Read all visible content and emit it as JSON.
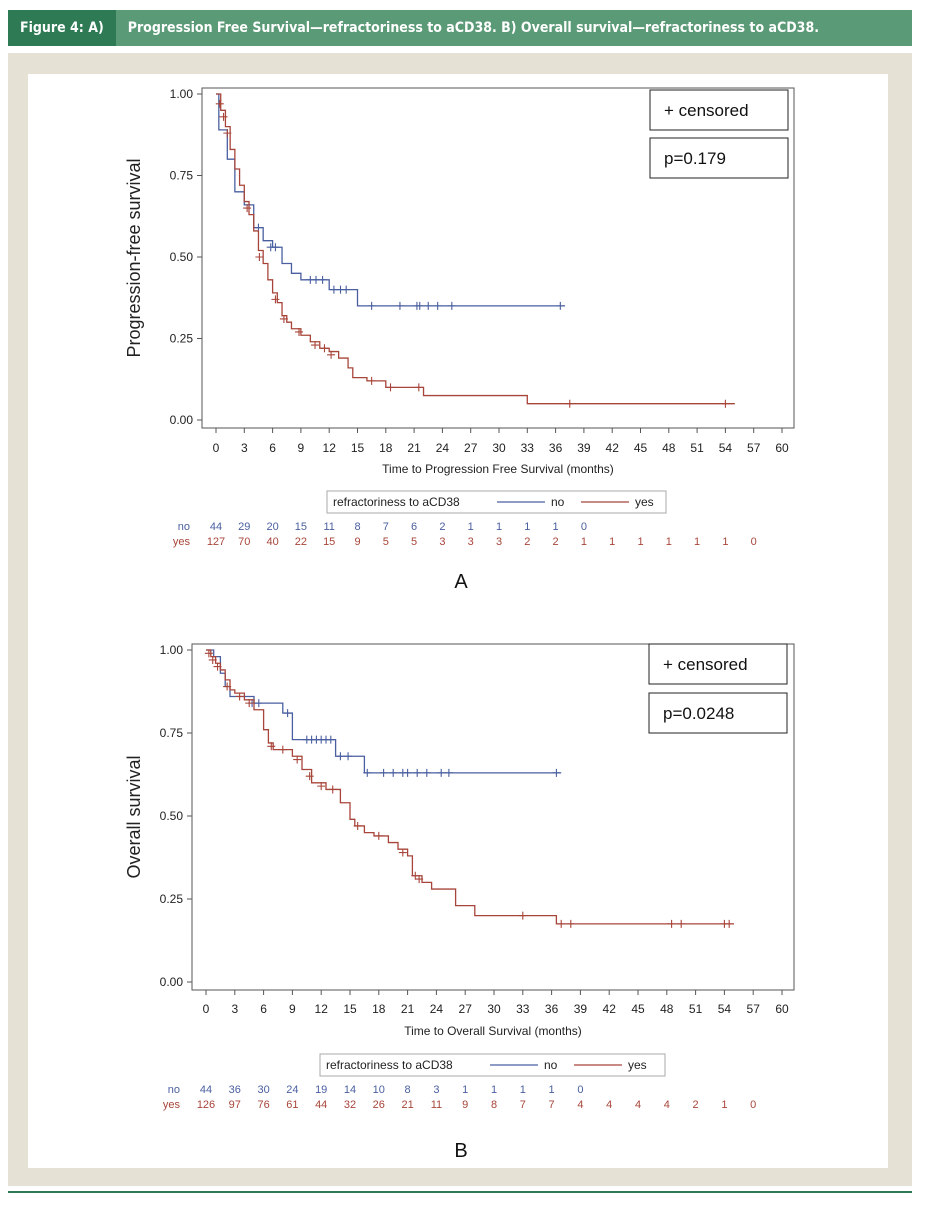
{
  "figure": {
    "label": "Figure 4: A)",
    "title": "Progression Free Survival—refractoriness to aCD38. B) Overall survival—refractoriness to aCD38."
  },
  "colors": {
    "no": "#4a5fa0",
    "yes": "#a8453a",
    "header_bg": "#5b9a76",
    "header_label_bg": "#2e7a55"
  },
  "chart_data": [
    {
      "type": "line",
      "panel_label": "A",
      "xlabel": "Time to Progression Free Survival (months)",
      "ylabel": "Progression-free survival",
      "xlim": [
        0,
        60
      ],
      "ylim": [
        0,
        1
      ],
      "xticks": [
        0,
        3,
        6,
        9,
        12,
        15,
        18,
        21,
        24,
        27,
        30,
        33,
        36,
        39,
        42,
        45,
        48,
        51,
        54,
        57,
        60
      ],
      "yticks": [
        "0.00",
        "0.25",
        "0.50",
        "0.75",
        "1.00"
      ],
      "censored_label": "+ censored",
      "p_value": "p=0.179",
      "legend_title": "refractoriness to aCD38",
      "series": [
        {
          "name": "no",
          "color": "#4a5fa0",
          "steps": [
            [
              0,
              1.0
            ],
            [
              0.3,
              0.89
            ],
            [
              1.2,
              0.8
            ],
            [
              2,
              0.7
            ],
            [
              3,
              0.66
            ],
            [
              4,
              0.59
            ],
            [
              5,
              0.55
            ],
            [
              6,
              0.53
            ],
            [
              7,
              0.48
            ],
            [
              8,
              0.45
            ],
            [
              9,
              0.43
            ],
            [
              12,
              0.4
            ],
            [
              15,
              0.35
            ],
            [
              37,
              0.35
            ]
          ],
          "censored": [
            [
              4.5,
              0.59
            ],
            [
              5.8,
              0.53
            ],
            [
              6.3,
              0.53
            ],
            [
              10,
              0.43
            ],
            [
              10.6,
              0.43
            ],
            [
              11.3,
              0.43
            ],
            [
              12.5,
              0.4
            ],
            [
              13.2,
              0.4
            ],
            [
              13.8,
              0.4
            ],
            [
              16.5,
              0.35
            ],
            [
              19.5,
              0.35
            ],
            [
              21.3,
              0.35
            ],
            [
              21.6,
              0.35
            ],
            [
              22.5,
              0.35
            ],
            [
              23.5,
              0.35
            ],
            [
              25,
              0.35
            ],
            [
              36.5,
              0.35
            ]
          ]
        },
        {
          "name": "yes",
          "color": "#a8453a",
          "steps": [
            [
              0,
              1.0
            ],
            [
              0.5,
              0.95
            ],
            [
              1,
              0.9
            ],
            [
              1.5,
              0.83
            ],
            [
              2,
              0.77
            ],
            [
              2.5,
              0.72
            ],
            [
              3,
              0.67
            ],
            [
              3.5,
              0.63
            ],
            [
              4,
              0.58
            ],
            [
              4.5,
              0.52
            ],
            [
              5,
              0.48
            ],
            [
              5.5,
              0.43
            ],
            [
              6,
              0.39
            ],
            [
              6.5,
              0.36
            ],
            [
              7,
              0.32
            ],
            [
              7.5,
              0.3
            ],
            [
              8,
              0.28
            ],
            [
              9,
              0.26
            ],
            [
              10,
              0.24
            ],
            [
              11,
              0.22
            ],
            [
              12,
              0.21
            ],
            [
              13,
              0.19
            ],
            [
              14,
              0.16
            ],
            [
              14.5,
              0.13
            ],
            [
              16,
              0.12
            ],
            [
              18,
              0.1
            ],
            [
              22,
              0.075
            ],
            [
              33,
              0.05
            ],
            [
              55,
              0.05
            ]
          ],
          "censored": [
            [
              0.4,
              0.97
            ],
            [
              0.8,
              0.93
            ],
            [
              1.2,
              0.88
            ],
            [
              3.3,
              0.65
            ],
            [
              4.6,
              0.5
            ],
            [
              6.3,
              0.37
            ],
            [
              7.2,
              0.31
            ],
            [
              8.8,
              0.27
            ],
            [
              10.5,
              0.23
            ],
            [
              11.5,
              0.22
            ],
            [
              12.2,
              0.2
            ],
            [
              16.5,
              0.12
            ],
            [
              18.5,
              0.1
            ],
            [
              21.5,
              0.1
            ],
            [
              37.5,
              0.05
            ],
            [
              54,
              0.05
            ]
          ]
        }
      ],
      "at_risk": {
        "times": [
          0,
          3,
          6,
          9,
          12,
          15,
          18,
          21,
          24,
          27,
          30,
          33,
          36,
          39,
          42,
          45,
          48,
          51,
          54,
          57
        ],
        "no": [
          "44",
          "29",
          "20",
          "15",
          "11",
          "8",
          "7",
          "6",
          "2",
          "1",
          "1",
          "1",
          "1",
          "0"
        ],
        "yes": [
          "127",
          "70",
          "40",
          "22",
          "15",
          "9",
          "5",
          "5",
          "3",
          "3",
          "3",
          "2",
          "2",
          "1",
          "1",
          "1",
          "1",
          "1",
          "1",
          "0"
        ]
      }
    },
    {
      "type": "line",
      "panel_label": "B",
      "xlabel": "Time to Overall Survival (months)",
      "ylabel": "Overall survival",
      "xlim": [
        0,
        60
      ],
      "ylim": [
        0,
        1
      ],
      "xticks": [
        0,
        3,
        6,
        9,
        12,
        15,
        18,
        21,
        24,
        27,
        30,
        33,
        36,
        39,
        42,
        45,
        48,
        51,
        54,
        57,
        60
      ],
      "yticks": [
        "0.00",
        "0.25",
        "0.50",
        "0.75",
        "1.00"
      ],
      "censored_label": "+ censored",
      "p_value": "p=0.0248",
      "legend_title": "refractoriness to aCD38",
      "series": [
        {
          "name": "no",
          "color": "#4a5fa0",
          "steps": [
            [
              0,
              1.0
            ],
            [
              0.8,
              0.98
            ],
            [
              1.5,
              0.93
            ],
            [
              2,
              0.89
            ],
            [
              2.5,
              0.86
            ],
            [
              5,
              0.84
            ],
            [
              8,
              0.81
            ],
            [
              9,
              0.73
            ],
            [
              13.5,
              0.68
            ],
            [
              16.5,
              0.63
            ],
            [
              37,
              0.63
            ]
          ],
          "censored": [
            [
              4.8,
              0.84
            ],
            [
              5.5,
              0.84
            ],
            [
              8.5,
              0.81
            ],
            [
              10.5,
              0.73
            ],
            [
              11,
              0.73
            ],
            [
              11.5,
              0.73
            ],
            [
              12,
              0.73
            ],
            [
              12.5,
              0.73
            ],
            [
              13,
              0.73
            ],
            [
              14,
              0.68
            ],
            [
              14.8,
              0.68
            ],
            [
              16.8,
              0.63
            ],
            [
              18.5,
              0.63
            ],
            [
              19.5,
              0.63
            ],
            [
              20.5,
              0.63
            ],
            [
              21,
              0.63
            ],
            [
              22,
              0.63
            ],
            [
              23,
              0.63
            ],
            [
              24.5,
              0.63
            ],
            [
              25.3,
              0.63
            ],
            [
              36.5,
              0.63
            ]
          ]
        },
        {
          "name": "yes",
          "color": "#a8453a",
          "steps": [
            [
              0,
              1.0
            ],
            [
              0.5,
              0.98
            ],
            [
              1,
              0.96
            ],
            [
              1.5,
              0.94
            ],
            [
              2,
              0.91
            ],
            [
              2.5,
              0.88
            ],
            [
              3,
              0.87
            ],
            [
              4,
              0.85
            ],
            [
              5,
              0.82
            ],
            [
              6,
              0.76
            ],
            [
              6.5,
              0.72
            ],
            [
              7,
              0.7
            ],
            [
              9,
              0.68
            ],
            [
              10,
              0.64
            ],
            [
              11,
              0.6
            ],
            [
              12.5,
              0.58
            ],
            [
              14,
              0.54
            ],
            [
              15,
              0.49
            ],
            [
              15.5,
              0.47
            ],
            [
              16.5,
              0.45
            ],
            [
              17.5,
              0.44
            ],
            [
              19,
              0.42
            ],
            [
              20,
              0.4
            ],
            [
              21,
              0.38
            ],
            [
              21.5,
              0.32
            ],
            [
              22.5,
              0.3
            ],
            [
              23.5,
              0.28
            ],
            [
              26,
              0.23
            ],
            [
              28,
              0.2
            ],
            [
              36.5,
              0.175
            ],
            [
              55,
              0.175
            ]
          ],
          "censored": [
            [
              0.3,
              0.99
            ],
            [
              0.7,
              0.97
            ],
            [
              1.2,
              0.95
            ],
            [
              2.2,
              0.89
            ],
            [
              3.5,
              0.86
            ],
            [
              4.5,
              0.84
            ],
            [
              6.8,
              0.71
            ],
            [
              8,
              0.7
            ],
            [
              9.5,
              0.67
            ],
            [
              10.8,
              0.62
            ],
            [
              12,
              0.59
            ],
            [
              13.2,
              0.58
            ],
            [
              15.8,
              0.47
            ],
            [
              18,
              0.44
            ],
            [
              20.5,
              0.39
            ],
            [
              21.8,
              0.32
            ],
            [
              22.2,
              0.31
            ],
            [
              33,
              0.2
            ],
            [
              37,
              0.175
            ],
            [
              38,
              0.175
            ],
            [
              48.5,
              0.175
            ],
            [
              49.5,
              0.175
            ],
            [
              54,
              0.175
            ],
            [
              54.5,
              0.175
            ]
          ]
        }
      ],
      "at_risk": {
        "times": [
          0,
          3,
          6,
          9,
          12,
          15,
          18,
          21,
          24,
          27,
          30,
          33,
          36,
          39,
          42,
          45,
          48,
          51,
          54,
          57
        ],
        "no": [
          "44",
          "36",
          "30",
          "24",
          "19",
          "14",
          "10",
          "8",
          "3",
          "1",
          "1",
          "1",
          "1",
          "0"
        ],
        "yes": [
          "126",
          "97",
          "76",
          "61",
          "44",
          "32",
          "26",
          "21",
          "11",
          "9",
          "8",
          "7",
          "7",
          "4",
          "4",
          "4",
          "4",
          "2",
          "1",
          "0"
        ]
      }
    }
  ]
}
